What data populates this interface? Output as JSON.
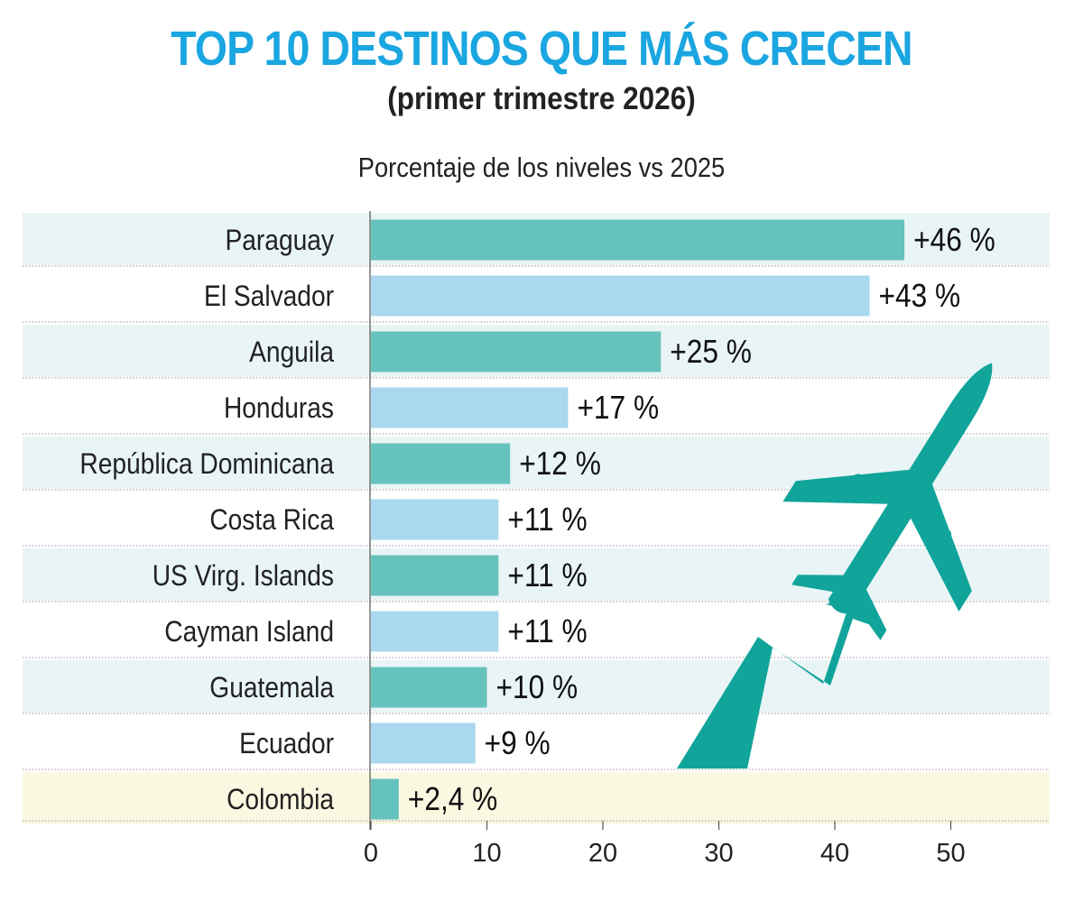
{
  "header": {
    "title": "TOP 10 DESTINOS QUE MÁS CRECEN",
    "subtitle": "(primer trimestre 2026)",
    "unit_label": "Porcentaje de los niveles vs 2025"
  },
  "colors": {
    "title": "#1aa6e0",
    "bar_teal": "#66c2bd",
    "bar_blue": "#a9d8ef",
    "row_band": "#e9f4f6",
    "highlight_band": "#fbf8e1",
    "plane": "#10a49a"
  },
  "icons": [
    "airplane-icon",
    "growth-arrow-icon"
  ],
  "chart_data": {
    "type": "bar",
    "orientation": "horizontal",
    "categories": [
      "Paraguay",
      "El Salvador",
      "Anguila",
      "Honduras",
      "República Dominicana",
      "Costa Rica",
      "US Virg. Islands",
      "Cayman Island",
      "Guatemala",
      "Ecuador",
      "Colombia"
    ],
    "values": [
      46,
      43,
      25,
      17,
      12,
      11,
      11,
      11,
      10,
      9,
      2.4
    ],
    "value_labels": [
      "+46 %",
      "+43 %",
      "+25 %",
      "+17 %",
      "+12 %",
      "+11 %",
      "+11 %",
      "+11 %",
      "+10 %",
      "+9 %",
      "+2,4 %"
    ],
    "xlim": [
      0,
      55
    ],
    "xticks": [
      0,
      10,
      20,
      30,
      40,
      50
    ],
    "grid": false,
    "highlight_category": "Colombia"
  }
}
